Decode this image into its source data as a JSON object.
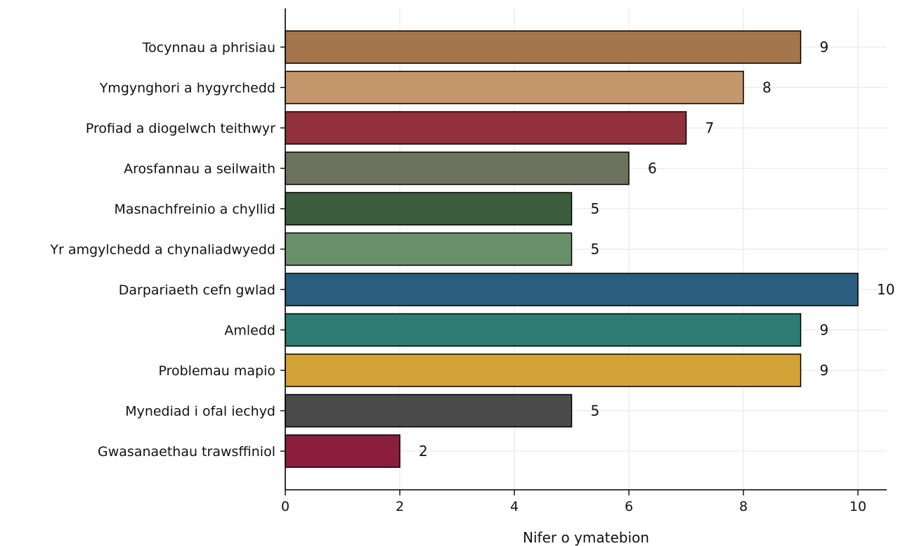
{
  "chart_data": {
    "type": "bar",
    "orientation": "horizontal",
    "title": "",
    "xlabel": "Nifer o ymatebion",
    "ylabel": "",
    "xlim": [
      0,
      10.5
    ],
    "xticks": [
      0,
      2,
      4,
      6,
      8,
      10
    ],
    "grid": "vertical",
    "categories": [
      "Tocynnau a phrisiau",
      "Ymgynghori a hygyrchedd",
      "Profiad a diogelwch teithwyr",
      "Arosfannau a seilwaith",
      "Masnachfreinio a chyllid",
      "Yr amgylchedd a chynaliadwyedd",
      "Darpariaeth cefn gwlad",
      "Amledd",
      "Problemau mapio",
      "Mynediad i ofal iechyd",
      "Gwasanaethau trawsffiniol"
    ],
    "values": [
      9,
      8,
      7,
      6,
      5,
      5,
      10,
      9,
      9,
      5,
      2
    ],
    "colors": [
      "#a5754b",
      "#c4966b",
      "#93323c",
      "#6d725f",
      "#3d5e3e",
      "#6a9069",
      "#2b5d7e",
      "#2e7c72",
      "#d4a337",
      "#4b4b4b",
      "#8b1e3c"
    ]
  }
}
